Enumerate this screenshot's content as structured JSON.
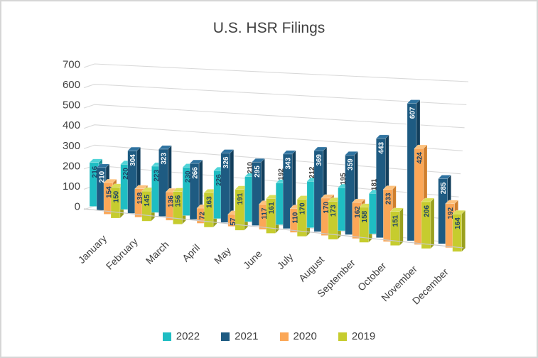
{
  "window": {
    "background": "#ffffff",
    "border_color": "#d6d6d6"
  },
  "chart_data": {
    "type": "bar",
    "variant": "3d-clustered-column",
    "title": "U.S. HSR Filings",
    "title_color": "#404040",
    "categories": [
      "January",
      "February",
      "March",
      "April",
      "May",
      "June",
      "July",
      "August",
      "September",
      "October",
      "November",
      "December"
    ],
    "series": [
      {
        "name": "2022",
        "color": "#1fbdc3",
        "color_top": "#4fd4d8",
        "color_side": "#129096",
        "label_color": "#1f4466",
        "values": [
          216,
          220,
          223,
          230,
          226,
          210,
          192,
          212,
          195,
          181,
          null,
          null
        ],
        "outside_label_indices": [
          5,
          6,
          7,
          8,
          9
        ]
      },
      {
        "name": "2021",
        "color": "#1e5b82",
        "color_top": "#2f73a0",
        "color_side": "#133f5c",
        "label_color": "#ffffff",
        "values": [
          210,
          304,
          323,
          266,
          326,
          295,
          343,
          369,
          359,
          443,
          607,
          285
        ],
        "outside_label_indices": []
      },
      {
        "name": "2020",
        "color": "#fba757",
        "color_top": "#fdc27e",
        "color_side": "#d07f2d",
        "label_color": "#1f4466",
        "values": [
          154,
          138,
          136,
          72,
          57,
          117,
          110,
          170,
          162,
          233,
          424,
          192
        ],
        "outside_label_indices": []
      },
      {
        "name": "2019",
        "color": "#c6cc2e",
        "color_top": "#dade57",
        "color_side": "#9aa01e",
        "label_color": "#1f4466",
        "values": [
          150,
          145,
          156,
          163,
          191,
          161,
          170,
          173,
          158,
          151,
          206,
          164
        ],
        "outside_label_indices": []
      }
    ],
    "y_axis": {
      "min": 0,
      "max": 700,
      "step": 100,
      "tick_labels": [
        "0",
        "100",
        "200",
        "300",
        "400",
        "500",
        "600",
        "700"
      ]
    },
    "grid": true,
    "gridline_color": "#d9d9d9",
    "axis_text_color": "#404040",
    "outside_label_color": "#444444",
    "legend_position": "bottom"
  }
}
